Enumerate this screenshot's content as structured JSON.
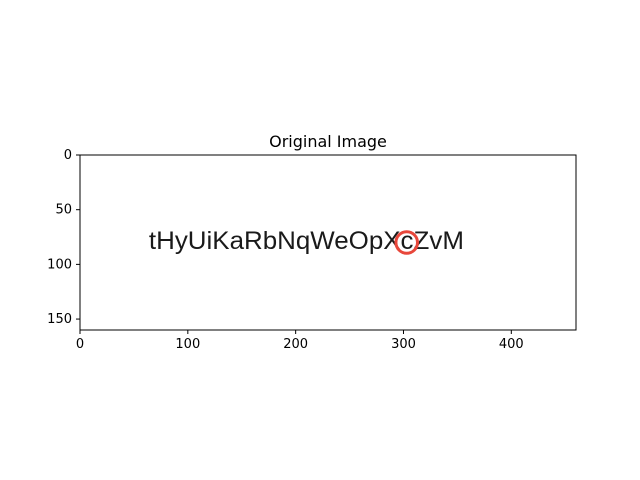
{
  "chart_data": {
    "type": "image",
    "title": "Original Image",
    "xlabel": "",
    "ylabel": "",
    "xlim": [
      0,
      460
    ],
    "ylim": [
      160,
      0
    ],
    "x_ticks": [
      0,
      100,
      200,
      300,
      400
    ],
    "y_ticks": [
      0,
      50,
      100,
      150
    ],
    "grid": false,
    "image_text": "tHyUiKaRbNqWeOpXcZvM",
    "text_center": [
      210,
      80
    ],
    "marker": {
      "shape": "circle",
      "center": [
        303,
        80
      ],
      "radius": 10,
      "color": "#e8473b"
    }
  },
  "colors": {
    "background": "#ffffff",
    "axes": "#000000",
    "marker": "#e8473b",
    "text": "#1a1a1a"
  }
}
